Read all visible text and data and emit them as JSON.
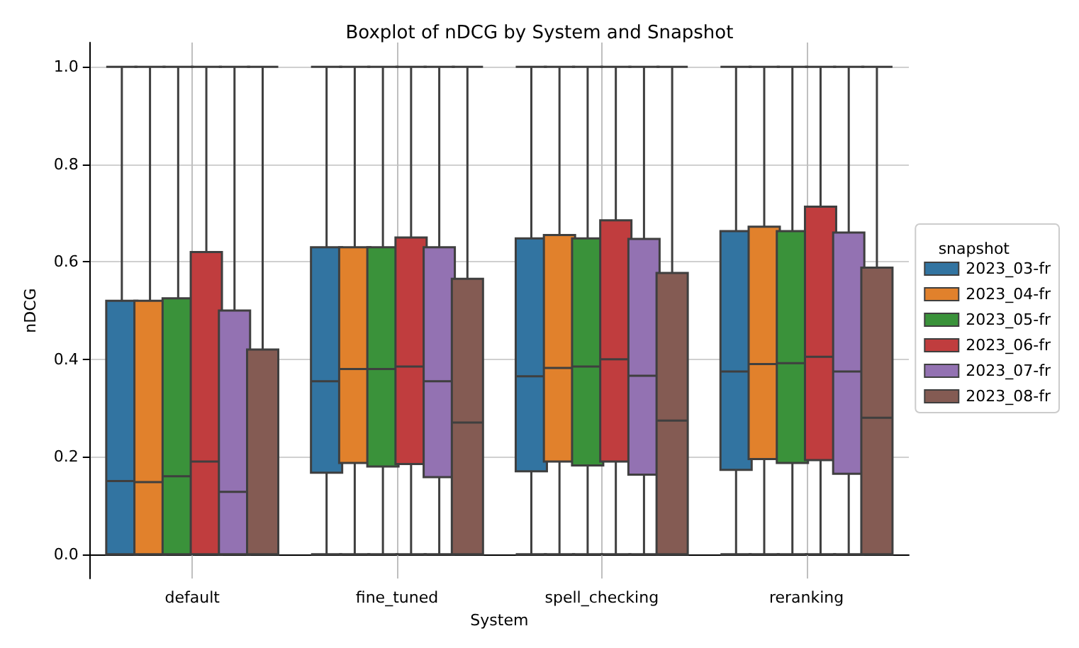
{
  "chart_data": {
    "type": "box",
    "title": "Boxplot of nDCG by System and Snapshot",
    "xlabel": "System",
    "ylabel": "nDCG",
    "legend_title": "snapshot",
    "legend": "right",
    "grid": true,
    "categories": [
      "default",
      "fine_tuned",
      "spell_checking",
      "reranking"
    ],
    "ylim": [
      -0.05,
      1.05
    ],
    "yticks": [
      {
        "value": 0,
        "label": "0.0"
      },
      {
        "value": 0.2,
        "label": "0.2"
      },
      {
        "value": 0.4,
        "label": "0.4"
      },
      {
        "value": 0.6,
        "label": "0.6"
      },
      {
        "value": 0.8,
        "label": "0.8"
      },
      {
        "value": 1,
        "label": "1.0"
      }
    ],
    "series": [
      {
        "name": "2023_03-fr",
        "color": "#3274a1",
        "boxes": [
          {
            "low": 0,
            "q1": 0,
            "median": 0.15,
            "q3": 0.52,
            "high": 1
          },
          {
            "low": 0,
            "q1": 0.167,
            "median": 0.355,
            "q3": 0.63,
            "high": 1
          },
          {
            "low": 0,
            "q1": 0.17,
            "median": 0.365,
            "q3": 0.648,
            "high": 1
          },
          {
            "low": 0,
            "q1": 0.173,
            "median": 0.375,
            "q3": 0.663,
            "high": 1
          }
        ]
      },
      {
        "name": "2023_04-fr",
        "color": "#e1812c",
        "boxes": [
          {
            "low": 0,
            "q1": 0,
            "median": 0.148,
            "q3": 0.52,
            "high": 1
          },
          {
            "low": 0,
            "q1": 0.187,
            "median": 0.38,
            "q3": 0.63,
            "high": 1
          },
          {
            "low": 0,
            "q1": 0.19,
            "median": 0.382,
            "q3": 0.655,
            "high": 1
          },
          {
            "low": 0,
            "q1": 0.195,
            "median": 0.39,
            "q3": 0.672,
            "high": 1
          }
        ]
      },
      {
        "name": "2023_05-fr",
        "color": "#3a923a",
        "boxes": [
          {
            "low": 0,
            "q1": 0,
            "median": 0.16,
            "q3": 0.525,
            "high": 1
          },
          {
            "low": 0,
            "q1": 0.18,
            "median": 0.38,
            "q3": 0.63,
            "high": 1
          },
          {
            "low": 0,
            "q1": 0.182,
            "median": 0.385,
            "q3": 0.648,
            "high": 1
          },
          {
            "low": 0,
            "q1": 0.187,
            "median": 0.392,
            "q3": 0.663,
            "high": 1
          }
        ]
      },
      {
        "name": "2023_06-fr",
        "color": "#c03d3e",
        "boxes": [
          {
            "low": 0,
            "q1": 0,
            "median": 0.19,
            "q3": 0.62,
            "high": 1
          },
          {
            "low": 0,
            "q1": 0.185,
            "median": 0.385,
            "q3": 0.65,
            "high": 1
          },
          {
            "low": 0,
            "q1": 0.19,
            "median": 0.4,
            "q3": 0.685,
            "high": 1
          },
          {
            "low": 0,
            "q1": 0.193,
            "median": 0.405,
            "q3": 0.713,
            "high": 1
          }
        ]
      },
      {
        "name": "2023_07-fr",
        "color": "#9372b2",
        "boxes": [
          {
            "low": 0,
            "q1": 0,
            "median": 0.128,
            "q3": 0.5,
            "high": 1
          },
          {
            "low": 0,
            "q1": 0.158,
            "median": 0.355,
            "q3": 0.63,
            "high": 1
          },
          {
            "low": 0,
            "q1": 0.163,
            "median": 0.366,
            "q3": 0.647,
            "high": 1
          },
          {
            "low": 0,
            "q1": 0.165,
            "median": 0.375,
            "q3": 0.66,
            "high": 1
          }
        ]
      },
      {
        "name": "2023_08-fr",
        "color": "#845b53",
        "boxes": [
          {
            "low": 0,
            "q1": 0,
            "median": 0,
            "q3": 0.42,
            "high": 1
          },
          {
            "low": 0,
            "q1": 0,
            "median": 0.27,
            "q3": 0.565,
            "high": 1
          },
          {
            "low": 0,
            "q1": 0,
            "median": 0.274,
            "q3": 0.577,
            "high": 1
          },
          {
            "low": 0,
            "q1": 0,
            "median": 0.28,
            "q3": 0.588,
            "high": 1
          }
        ]
      }
    ]
  }
}
